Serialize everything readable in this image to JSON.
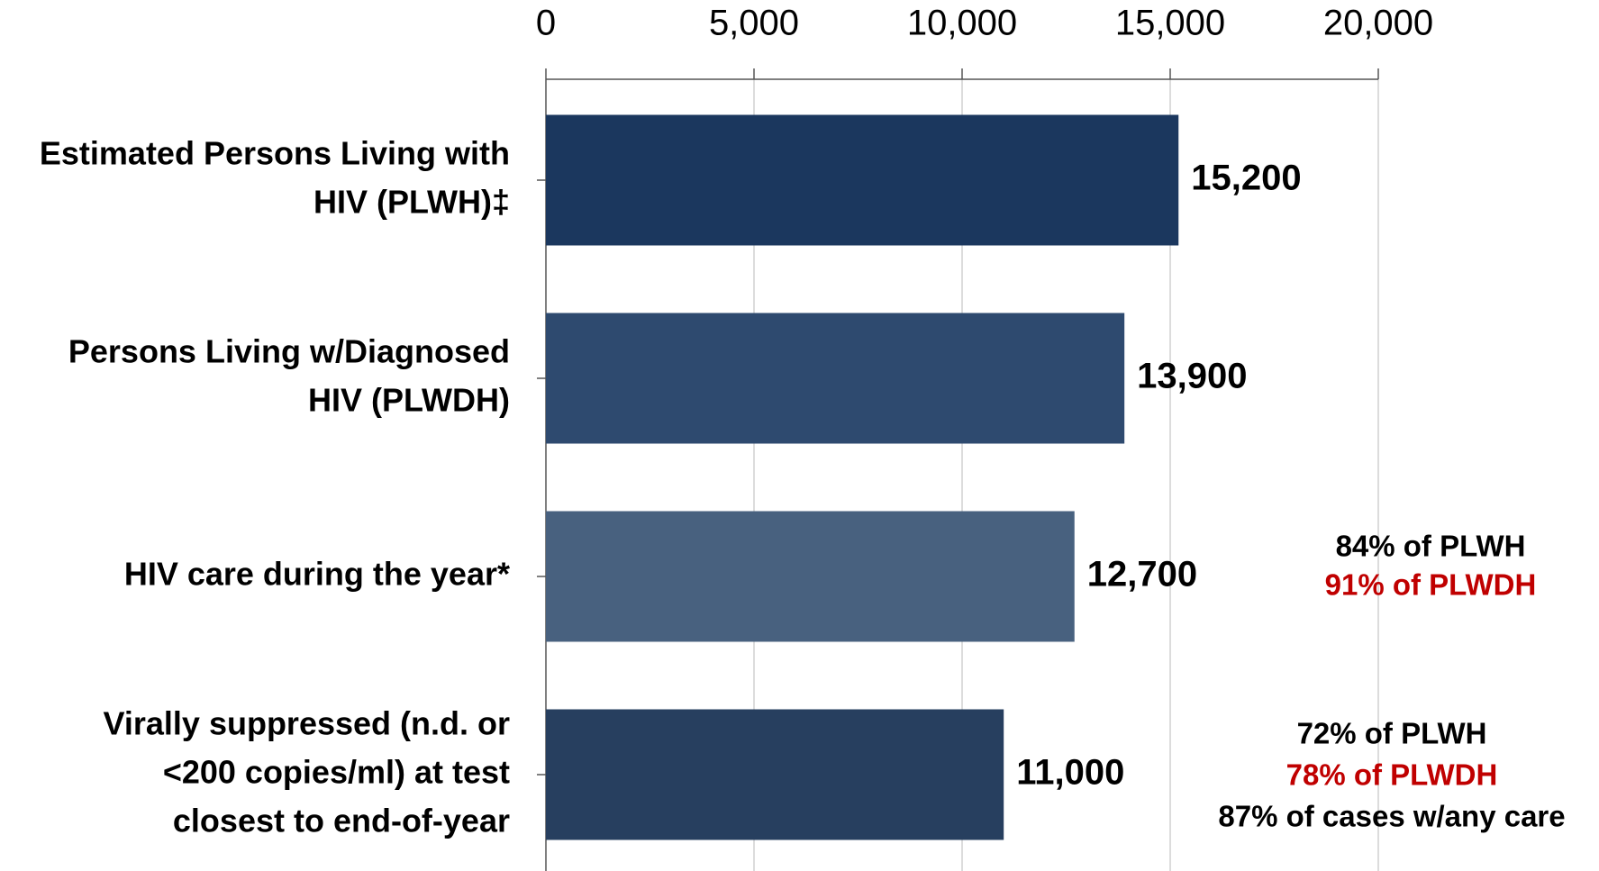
{
  "chart_data": {
    "type": "bar",
    "orientation": "horizontal",
    "categories": [
      [
        "Estimated Persons Living with",
        "HIV (PLWH)‡"
      ],
      [
        "Persons Living w/Diagnosed",
        "HIV (PLWDH)"
      ],
      [
        "HIV care during the year*"
      ],
      [
        "Virally suppressed (n.d. or",
        "<200 copies/ml) at test",
        "closest to end-of-year"
      ]
    ],
    "values": [
      15200,
      13900,
      12700,
      11000
    ],
    "value_labels": [
      "15,200",
      "13,900",
      "12,700",
      "11,000"
    ],
    "colors": [
      "#1b375e",
      "#2e4a6f",
      "#48617f",
      "#273f5f"
    ],
    "xlim": [
      0,
      20000
    ],
    "xticks": [
      0,
      {
        "value": 5000,
        "label": "5,000"
      },
      {
        "value": 10000,
        "label": "10,000"
      },
      {
        "value": 15000,
        "label": "15,000"
      },
      {
        "value": 20000,
        "label": "20,000"
      }
    ],
    "grid": true,
    "annotations": [
      [
        {
          "text": "84% of PLWH",
          "color": "#000000"
        },
        {
          "text": "91% of PLWDH",
          "color": "#c00000"
        }
      ],
      [
        {
          "text": "72% of PLWH",
          "color": "#000000"
        },
        {
          "text": "78% of PLWDH",
          "color": "#c00000"
        },
        {
          "text": "87% of cases w/any care",
          "color": "#000000"
        }
      ]
    ]
  }
}
